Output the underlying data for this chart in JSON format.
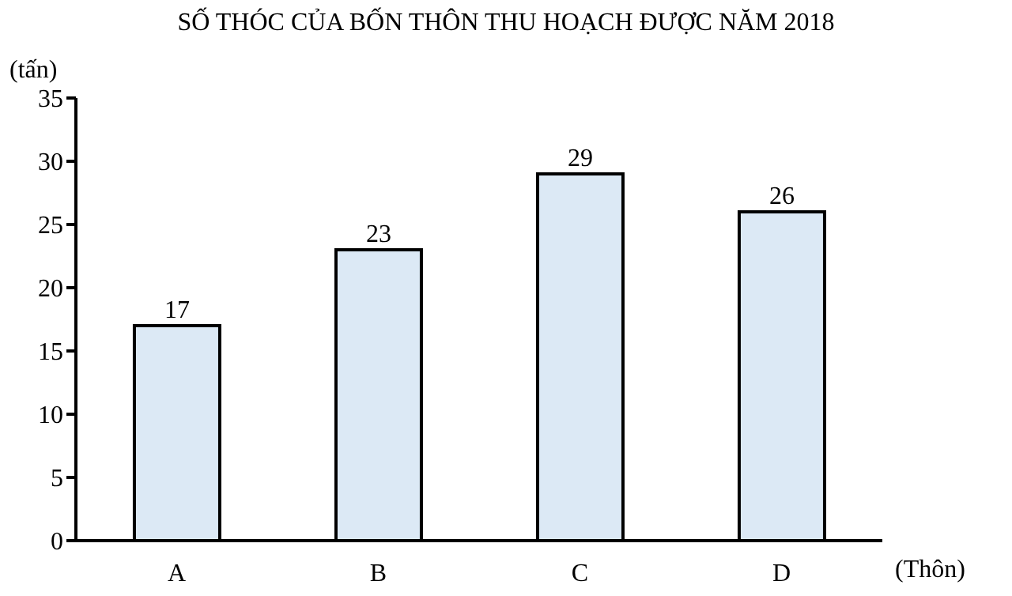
{
  "chart_data": {
    "type": "bar",
    "title": "SỐ THÓC CỦA BỐN THÔN THU HOẠCH ĐƯỢC NĂM 2018",
    "xlabel": "(Thôn)",
    "ylabel": "(tấn)",
    "categories": [
      "A",
      "B",
      "C",
      "D"
    ],
    "values": [
      17,
      23,
      29,
      26
    ],
    "color": "#dce9f5",
    "ylim": [
      0,
      35
    ],
    "yticks": [
      0,
      5,
      10,
      15,
      20,
      25,
      30,
      35
    ],
    "data_labels": true
  }
}
